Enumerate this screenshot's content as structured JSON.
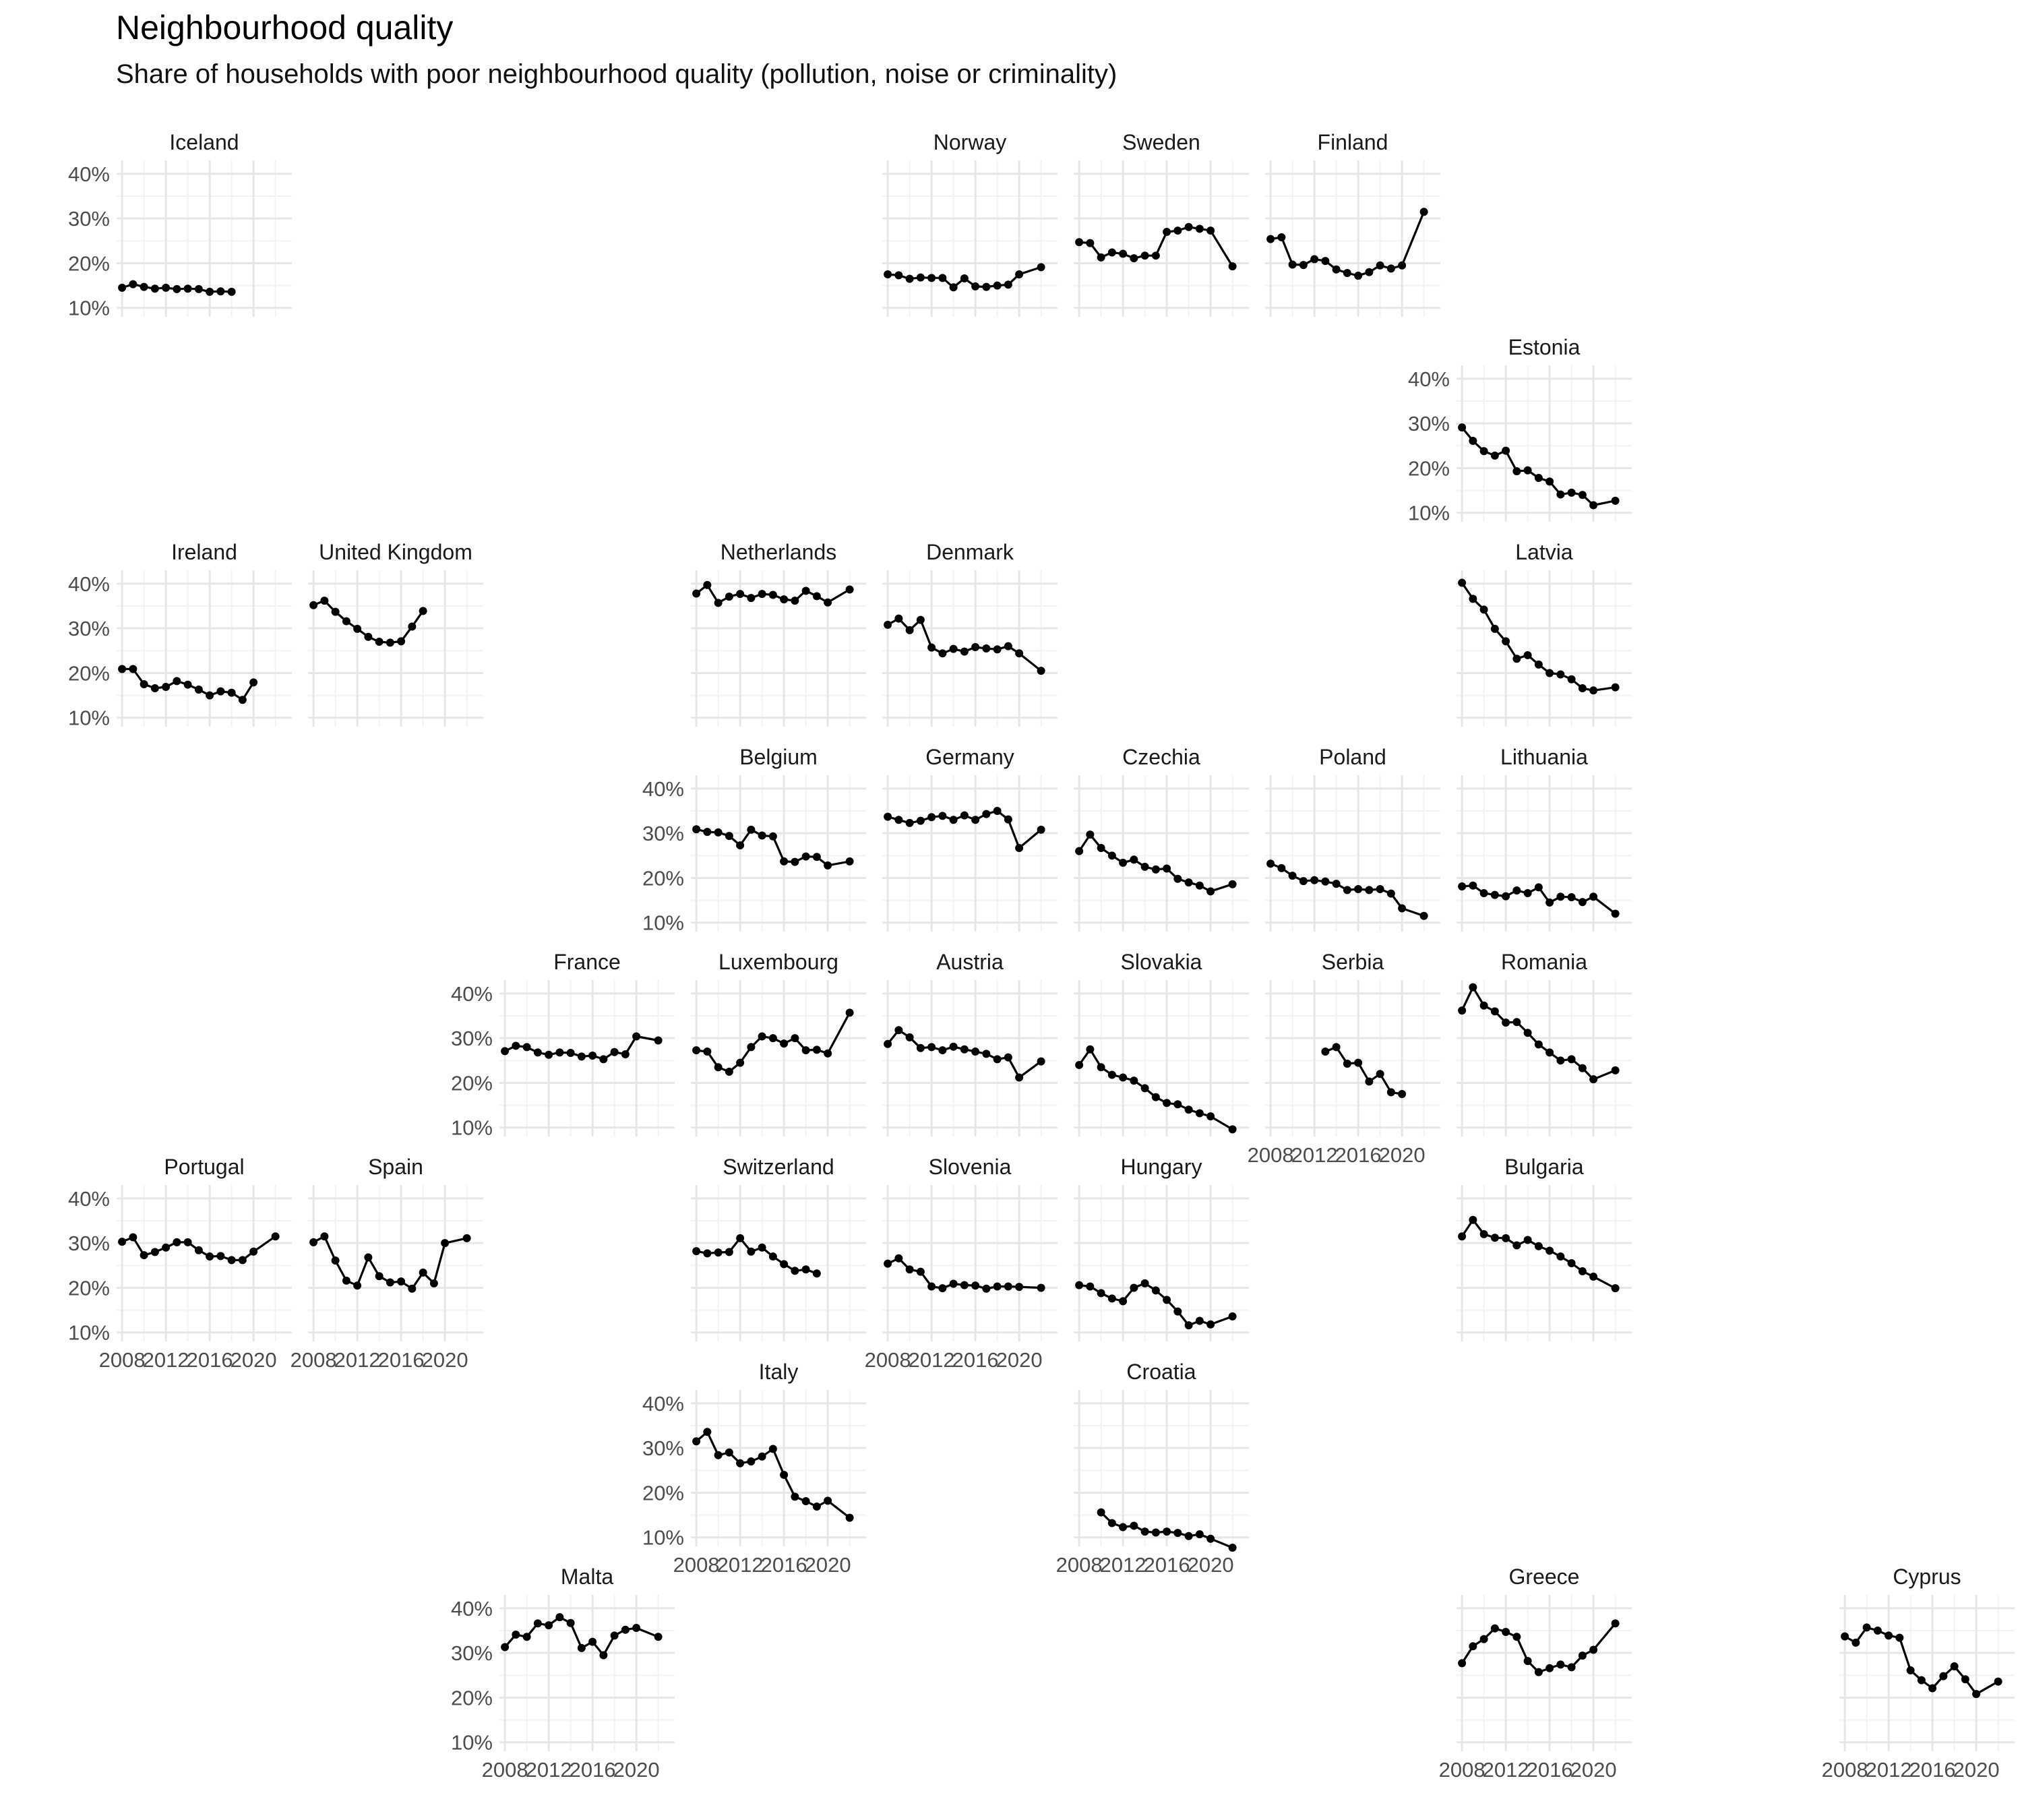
{
  "chart_data": {
    "type": "line",
    "title": "Neighbourhood quality",
    "subtitle": "Share of households with poor neighbourhood quality (pollution, noise or criminality)",
    "xlabel": "",
    "ylabel": "",
    "ylim": [
      0.08,
      0.43
    ],
    "xlim": [
      2007.5,
      2023.5
    ],
    "y_ticks": [
      0.1,
      0.2,
      0.3,
      0.4
    ],
    "y_tick_labels": [
      "10%",
      "20%",
      "30%",
      "40%"
    ],
    "x_ticks": [
      2008,
      2012,
      2016,
      2020
    ],
    "x_tick_labels": [
      "2008",
      "2012",
      "2016",
      "2020"
    ],
    "grid": true,
    "facets": [
      {
        "name": "Iceland",
        "row": 0,
        "col": 0,
        "x": [
          2008,
          2009,
          2010,
          2011,
          2012,
          2013,
          2014,
          2015,
          2016,
          2017,
          2018
        ],
        "y": [
          0.145,
          0.153,
          0.147,
          0.143,
          0.145,
          0.142,
          0.143,
          0.142,
          0.136,
          0.137,
          0.136
        ]
      },
      {
        "name": "Norway",
        "row": 0,
        "col": 4,
        "x": [
          2008,
          2009,
          2010,
          2011,
          2012,
          2013,
          2014,
          2015,
          2016,
          2017,
          2018,
          2019,
          2020,
          2022
        ],
        "y": [
          0.175,
          0.173,
          0.165,
          0.168,
          0.167,
          0.167,
          0.146,
          0.166,
          0.148,
          0.147,
          0.15,
          0.152,
          0.175,
          0.191
        ]
      },
      {
        "name": "Sweden",
        "row": 0,
        "col": 5,
        "x": [
          2008,
          2009,
          2010,
          2011,
          2012,
          2013,
          2014,
          2015,
          2016,
          2017,
          2018,
          2019,
          2020,
          2022
        ],
        "y": [
          0.247,
          0.245,
          0.213,
          0.224,
          0.221,
          0.211,
          0.217,
          0.217,
          0.27,
          0.273,
          0.281,
          0.277,
          0.273,
          0.193
        ]
      },
      {
        "name": "Finland",
        "row": 0,
        "col": 6,
        "x": [
          2008,
          2009,
          2010,
          2011,
          2012,
          2013,
          2014,
          2015,
          2016,
          2017,
          2018,
          2019,
          2020,
          2022
        ],
        "y": [
          0.254,
          0.258,
          0.197,
          0.196,
          0.209,
          0.205,
          0.186,
          0.178,
          0.172,
          0.18,
          0.195,
          0.188,
          0.195,
          0.315
        ]
      },
      {
        "name": "Estonia",
        "row": 1,
        "col": 7,
        "x": [
          2008,
          2009,
          2010,
          2011,
          2012,
          2013,
          2014,
          2015,
          2016,
          2017,
          2018,
          2019,
          2020,
          2022
        ],
        "y": [
          0.291,
          0.261,
          0.238,
          0.228,
          0.239,
          0.193,
          0.195,
          0.178,
          0.17,
          0.141,
          0.145,
          0.14,
          0.117,
          0.127
        ]
      },
      {
        "name": "Ireland",
        "row": 2,
        "col": 0,
        "x": [
          2008,
          2009,
          2010,
          2011,
          2012,
          2013,
          2014,
          2015,
          2016,
          2017,
          2018,
          2019,
          2020
        ],
        "y": [
          0.209,
          0.209,
          0.175,
          0.166,
          0.169,
          0.182,
          0.174,
          0.163,
          0.15,
          0.159,
          0.156,
          0.14,
          0.179
        ]
      },
      {
        "name": "United Kingdom",
        "row": 2,
        "col": 1,
        "x": [
          2008,
          2009,
          2010,
          2011,
          2012,
          2013,
          2014,
          2015,
          2016,
          2017,
          2018
        ],
        "y": [
          0.352,
          0.362,
          0.337,
          0.316,
          0.299,
          0.281,
          0.27,
          0.268,
          0.271,
          0.304,
          0.339
        ]
      },
      {
        "name": "Netherlands",
        "row": 2,
        "col": 3,
        "x": [
          2008,
          2009,
          2010,
          2011,
          2012,
          2013,
          2014,
          2015,
          2016,
          2017,
          2018,
          2019,
          2020,
          2022
        ],
        "y": [
          0.378,
          0.397,
          0.357,
          0.371,
          0.377,
          0.368,
          0.377,
          0.375,
          0.365,
          0.362,
          0.384,
          0.372,
          0.358,
          0.387
        ]
      },
      {
        "name": "Denmark",
        "row": 2,
        "col": 4,
        "x": [
          2008,
          2009,
          2010,
          2011,
          2012,
          2013,
          2014,
          2015,
          2016,
          2017,
          2018,
          2019,
          2020,
          2022
        ],
        "y": [
          0.308,
          0.322,
          0.296,
          0.319,
          0.257,
          0.244,
          0.254,
          0.248,
          0.258,
          0.255,
          0.253,
          0.26,
          0.244,
          0.205
        ]
      },
      {
        "name": "Latvia",
        "row": 2,
        "col": 7,
        "x": [
          2008,
          2009,
          2010,
          2011,
          2012,
          2013,
          2014,
          2015,
          2016,
          2017,
          2018,
          2019,
          2020,
          2022
        ],
        "y": [
          0.402,
          0.366,
          0.342,
          0.299,
          0.271,
          0.232,
          0.24,
          0.219,
          0.2,
          0.197,
          0.186,
          0.166,
          0.161,
          0.168
        ]
      },
      {
        "name": "Belgium",
        "row": 3,
        "col": 3,
        "x": [
          2008,
          2009,
          2010,
          2011,
          2012,
          2013,
          2014,
          2015,
          2016,
          2017,
          2018,
          2019,
          2020,
          2022
        ],
        "y": [
          0.309,
          0.303,
          0.302,
          0.294,
          0.273,
          0.308,
          0.295,
          0.293,
          0.237,
          0.236,
          0.248,
          0.247,
          0.228,
          0.237
        ]
      },
      {
        "name": "Germany",
        "row": 3,
        "col": 4,
        "x": [
          2008,
          2009,
          2010,
          2011,
          2012,
          2013,
          2014,
          2015,
          2016,
          2017,
          2018,
          2019,
          2020,
          2022
        ],
        "y": [
          0.337,
          0.33,
          0.323,
          0.328,
          0.336,
          0.339,
          0.33,
          0.34,
          0.33,
          0.343,
          0.35,
          0.331,
          0.267,
          0.308
        ]
      },
      {
        "name": "Czechia",
        "row": 3,
        "col": 5,
        "x": [
          2008,
          2009,
          2010,
          2011,
          2012,
          2013,
          2014,
          2015,
          2016,
          2017,
          2018,
          2019,
          2020,
          2022
        ],
        "y": [
          0.26,
          0.297,
          0.267,
          0.25,
          0.234,
          0.241,
          0.225,
          0.219,
          0.221,
          0.198,
          0.19,
          0.183,
          0.17,
          0.186
        ]
      },
      {
        "name": "Poland",
        "row": 3,
        "col": 6,
        "x": [
          2008,
          2009,
          2010,
          2011,
          2012,
          2013,
          2014,
          2015,
          2016,
          2017,
          2018,
          2019,
          2020,
          2022
        ],
        "y": [
          0.232,
          0.222,
          0.205,
          0.193,
          0.195,
          0.192,
          0.187,
          0.173,
          0.175,
          0.173,
          0.175,
          0.165,
          0.132,
          0.115
        ]
      },
      {
        "name": "Lithuania",
        "row": 3,
        "col": 7,
        "x": [
          2008,
          2009,
          2010,
          2011,
          2012,
          2013,
          2014,
          2015,
          2016,
          2017,
          2018,
          2019,
          2020,
          2022
        ],
        "y": [
          0.181,
          0.183,
          0.166,
          0.162,
          0.159,
          0.172,
          0.166,
          0.179,
          0.145,
          0.158,
          0.157,
          0.146,
          0.158,
          0.12
        ]
      },
      {
        "name": "France",
        "row": 4,
        "col": 2,
        "x": [
          2008,
          2009,
          2010,
          2011,
          2012,
          2013,
          2014,
          2015,
          2016,
          2017,
          2018,
          2019,
          2020,
          2022
        ],
        "y": [
          0.271,
          0.283,
          0.28,
          0.268,
          0.263,
          0.268,
          0.267,
          0.259,
          0.261,
          0.253,
          0.269,
          0.264,
          0.304,
          0.295
        ]
      },
      {
        "name": "Luxembourg",
        "row": 4,
        "col": 3,
        "x": [
          2008,
          2009,
          2010,
          2011,
          2012,
          2013,
          2014,
          2015,
          2016,
          2017,
          2018,
          2019,
          2020,
          2022
        ],
        "y": [
          0.273,
          0.27,
          0.235,
          0.225,
          0.245,
          0.28,
          0.304,
          0.3,
          0.288,
          0.3,
          0.273,
          0.274,
          0.266,
          0.357
        ]
      },
      {
        "name": "Austria",
        "row": 4,
        "col": 4,
        "x": [
          2008,
          2009,
          2010,
          2011,
          2012,
          2013,
          2014,
          2015,
          2016,
          2017,
          2018,
          2019,
          2020,
          2022
        ],
        "y": [
          0.287,
          0.318,
          0.302,
          0.278,
          0.28,
          0.273,
          0.281,
          0.275,
          0.27,
          0.265,
          0.253,
          0.257,
          0.212,
          0.248
        ]
      },
      {
        "name": "Slovakia",
        "row": 4,
        "col": 5,
        "x": [
          2008,
          2009,
          2010,
          2011,
          2012,
          2013,
          2014,
          2015,
          2016,
          2017,
          2018,
          2019,
          2020,
          2022
        ],
        "y": [
          0.24,
          0.275,
          0.235,
          0.218,
          0.212,
          0.205,
          0.188,
          0.168,
          0.155,
          0.152,
          0.14,
          0.132,
          0.125,
          0.096
        ]
      },
      {
        "name": "Serbia",
        "row": 4,
        "col": 6,
        "x": [
          2013,
          2014,
          2015,
          2016,
          2017,
          2018,
          2019,
          2020
        ],
        "y": [
          0.27,
          0.28,
          0.243,
          0.245,
          0.203,
          0.22,
          0.179,
          0.175
        ]
      },
      {
        "name": "Romania",
        "row": 4,
        "col": 7,
        "x": [
          2008,
          2009,
          2010,
          2011,
          2012,
          2013,
          2014,
          2015,
          2016,
          2017,
          2018,
          2019,
          2020,
          2022
        ],
        "y": [
          0.362,
          0.414,
          0.373,
          0.36,
          0.335,
          0.336,
          0.312,
          0.286,
          0.268,
          0.25,
          0.253,
          0.233,
          0.208,
          0.228
        ]
      },
      {
        "name": "Portugal",
        "row": 5,
        "col": 0,
        "x": [
          2008,
          2009,
          2010,
          2011,
          2012,
          2013,
          2014,
          2015,
          2016,
          2017,
          2018,
          2019,
          2020,
          2022
        ],
        "y": [
          0.303,
          0.313,
          0.273,
          0.28,
          0.29,
          0.302,
          0.302,
          0.284,
          0.27,
          0.271,
          0.262,
          0.262,
          0.281,
          0.315
        ]
      },
      {
        "name": "Spain",
        "row": 5,
        "col": 1,
        "x": [
          2008,
          2009,
          2010,
          2011,
          2012,
          2013,
          2014,
          2015,
          2016,
          2017,
          2018,
          2019,
          2020,
          2022
        ],
        "y": [
          0.302,
          0.315,
          0.261,
          0.216,
          0.205,
          0.268,
          0.226,
          0.212,
          0.214,
          0.198,
          0.234,
          0.21,
          0.3,
          0.311
        ]
      },
      {
        "name": "Switzerland",
        "row": 5,
        "col": 3,
        "x": [
          2008,
          2009,
          2010,
          2011,
          2012,
          2013,
          2014,
          2015,
          2016,
          2017,
          2018,
          2019
        ],
        "y": [
          0.282,
          0.277,
          0.279,
          0.28,
          0.311,
          0.281,
          0.29,
          0.27,
          0.253,
          0.238,
          0.241,
          0.232
        ]
      },
      {
        "name": "Slovenia",
        "row": 5,
        "col": 4,
        "x": [
          2008,
          2009,
          2010,
          2011,
          2012,
          2013,
          2014,
          2015,
          2016,
          2017,
          2018,
          2019,
          2020,
          2022
        ],
        "y": [
          0.254,
          0.266,
          0.241,
          0.236,
          0.203,
          0.199,
          0.209,
          0.206,
          0.205,
          0.198,
          0.203,
          0.203,
          0.202,
          0.2
        ]
      },
      {
        "name": "Hungary",
        "row": 5,
        "col": 5,
        "x": [
          2008,
          2009,
          2010,
          2011,
          2012,
          2013,
          2014,
          2015,
          2016,
          2017,
          2018,
          2019,
          2020,
          2022
        ],
        "y": [
          0.206,
          0.203,
          0.188,
          0.176,
          0.17,
          0.2,
          0.21,
          0.194,
          0.173,
          0.147,
          0.116,
          0.126,
          0.118,
          0.136
        ]
      },
      {
        "name": "Bulgaria",
        "row": 5,
        "col": 7,
        "x": [
          2008,
          2009,
          2010,
          2011,
          2012,
          2013,
          2014,
          2015,
          2016,
          2017,
          2018,
          2019,
          2020,
          2022
        ],
        "y": [
          0.315,
          0.352,
          0.32,
          0.312,
          0.311,
          0.295,
          0.307,
          0.293,
          0.283,
          0.27,
          0.255,
          0.237,
          0.225,
          0.199
        ]
      },
      {
        "name": "Italy",
        "row": 6,
        "col": 3,
        "x": [
          2008,
          2009,
          2010,
          2011,
          2012,
          2013,
          2014,
          2015,
          2016,
          2017,
          2018,
          2019,
          2020,
          2022
        ],
        "y": [
          0.315,
          0.336,
          0.284,
          0.29,
          0.266,
          0.27,
          0.281,
          0.298,
          0.24,
          0.191,
          0.181,
          0.169,
          0.182,
          0.144
        ]
      },
      {
        "name": "Croatia",
        "row": 6,
        "col": 5,
        "x": [
          2010,
          2011,
          2012,
          2013,
          2014,
          2015,
          2016,
          2017,
          2018,
          2019,
          2020,
          2022
        ],
        "y": [
          0.156,
          0.132,
          0.123,
          0.126,
          0.113,
          0.111,
          0.113,
          0.11,
          0.103,
          0.107,
          0.097,
          0.077
        ]
      },
      {
        "name": "Malta",
        "row": 7,
        "col": 2,
        "x": [
          2008,
          2009,
          2010,
          2011,
          2012,
          2013,
          2014,
          2015,
          2016,
          2017,
          2018,
          2019,
          2020,
          2022
        ],
        "y": [
          0.313,
          0.341,
          0.336,
          0.366,
          0.362,
          0.38,
          0.367,
          0.311,
          0.325,
          0.295,
          0.339,
          0.352,
          0.356,
          0.336
        ]
      },
      {
        "name": "Greece",
        "row": 7,
        "col": 7,
        "x": [
          2008,
          2009,
          2010,
          2011,
          2012,
          2013,
          2014,
          2015,
          2016,
          2017,
          2018,
          2019,
          2020,
          2022
        ],
        "y": [
          0.277,
          0.315,
          0.331,
          0.355,
          0.347,
          0.336,
          0.282,
          0.257,
          0.266,
          0.274,
          0.268,
          0.294,
          0.307,
          0.366
        ]
      },
      {
        "name": "Cyprus",
        "row": 7,
        "col": 9,
        "x": [
          2008,
          2009,
          2010,
          2011,
          2012,
          2013,
          2014,
          2015,
          2016,
          2017,
          2018,
          2019,
          2020,
          2022
        ],
        "y": [
          0.337,
          0.323,
          0.357,
          0.35,
          0.339,
          0.334,
          0.261,
          0.239,
          0.221,
          0.248,
          0.27,
          0.241,
          0.208,
          0.236
        ]
      }
    ],
    "x_axis_facets": [
      "Serbia",
      "Portugal",
      "Spain",
      "Slovenia",
      "Italy",
      "Croatia",
      "Malta",
      "Greece",
      "Cyprus"
    ],
    "y_axis_facets": [
      "Iceland",
      "Estonia",
      "Ireland",
      "Belgium",
      "France",
      "Portugal",
      "Italy",
      "Malta"
    ]
  }
}
